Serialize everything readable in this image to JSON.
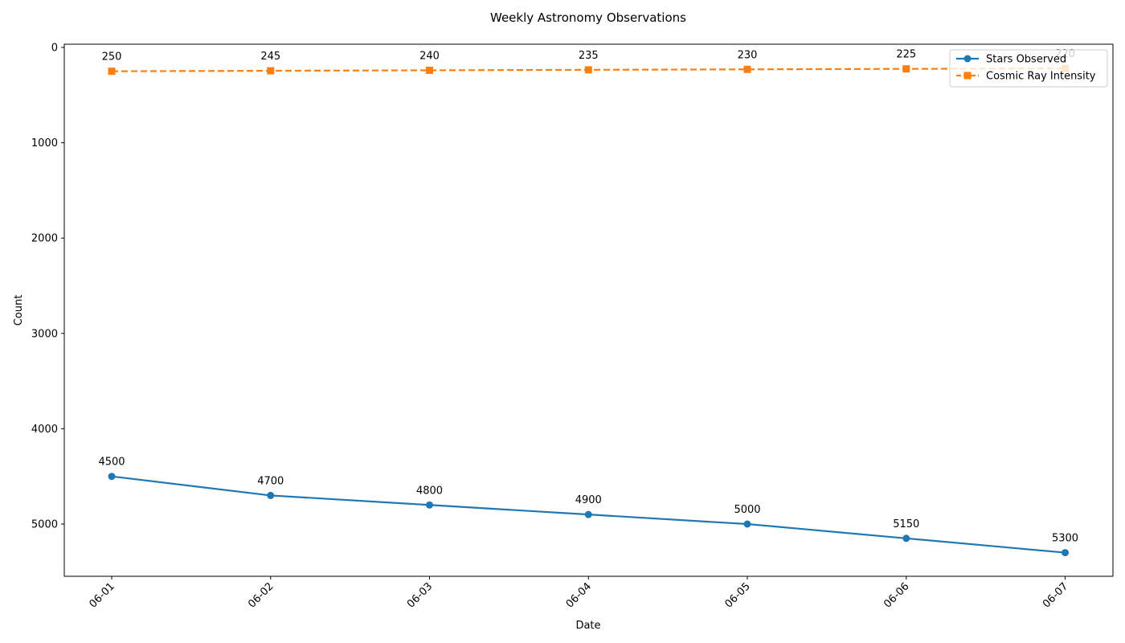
{
  "chart_data": {
    "type": "line",
    "title": "Weekly Astronomy Observations",
    "xlabel": "Date",
    "ylabel": "Count",
    "categories": [
      "06-01",
      "06-02",
      "06-03",
      "06-04",
      "06-05",
      "06-06",
      "06-07"
    ],
    "y_inverted": true,
    "ylim": [
      0,
      5550
    ],
    "yticks": [
      0,
      1000,
      2000,
      3000,
      4000,
      5000
    ],
    "grid": false,
    "legend_position": "top-right",
    "series": [
      {
        "name": "Stars Observed",
        "values": [
          4500,
          4700,
          4800,
          4900,
          5000,
          5150,
          5300
        ],
        "color": "#1f77b4",
        "line_style": "solid",
        "marker": "circle"
      },
      {
        "name": "Cosmic Ray Intensity",
        "values": [
          250,
          245,
          240,
          235,
          230,
          225,
          220
        ],
        "color": "#ff7f0e",
        "line_style": "dashed",
        "marker": "square"
      }
    ]
  }
}
